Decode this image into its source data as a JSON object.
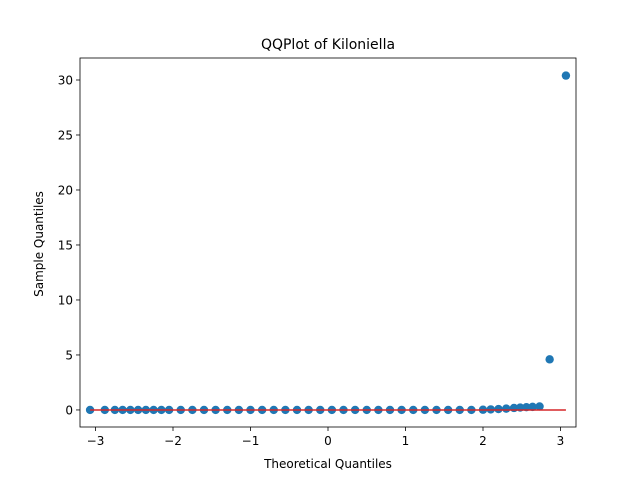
{
  "chart_data": {
    "type": "scatter",
    "title": "QQPlot of Kiloniella",
    "xlabel": "Theoretical Quantiles",
    "ylabel": "Sample Quantiles",
    "xlim": [
      -3.2,
      3.2
    ],
    "ylim": [
      -1.55,
      32.0
    ],
    "x_ticks": [
      -3,
      -2,
      -1,
      0,
      1,
      2,
      3
    ],
    "y_ticks": [
      0,
      5,
      10,
      15,
      20,
      25,
      30
    ],
    "grid": false,
    "colors": {
      "points": "#1f77b4",
      "line": "#d62728"
    },
    "points": {
      "x": [
        -3.07,
        -2.88,
        -2.75,
        -2.65,
        -2.55,
        -2.45,
        -2.35,
        -2.25,
        -2.15,
        -2.05,
        -1.9,
        -1.75,
        -1.6,
        -1.45,
        -1.3,
        -1.15,
        -1.0,
        -0.85,
        -0.7,
        -0.55,
        -0.4,
        -0.25,
        -0.1,
        0.05,
        0.2,
        0.35,
        0.5,
        0.65,
        0.8,
        0.95,
        1.1,
        1.25,
        1.4,
        1.55,
        1.7,
        1.85,
        2.0,
        2.1,
        2.2,
        2.3,
        2.4,
        2.48,
        2.56,
        2.64,
        2.73,
        2.86,
        3.07
      ],
      "y": [
        0.0,
        0.0,
        0.0,
        0.0,
        0.0,
        0.0,
        0.0,
        0.0,
        0.0,
        0.0,
        0.0,
        0.0,
        0.0,
        0.0,
        0.0,
        0.0,
        0.0,
        0.0,
        0.0,
        0.0,
        0.0,
        0.0,
        0.0,
        0.0,
        0.0,
        0.0,
        0.0,
        0.0,
        0.0,
        0.0,
        0.0,
        0.0,
        0.0,
        0.0,
        0.0,
        0.0,
        0.02,
        0.05,
        0.08,
        0.12,
        0.18,
        0.22,
        0.25,
        0.28,
        0.32,
        4.6,
        30.4
      ]
    },
    "reference_line": {
      "x": [
        -3.07,
        3.07
      ],
      "y": [
        0.0,
        0.0
      ]
    }
  }
}
